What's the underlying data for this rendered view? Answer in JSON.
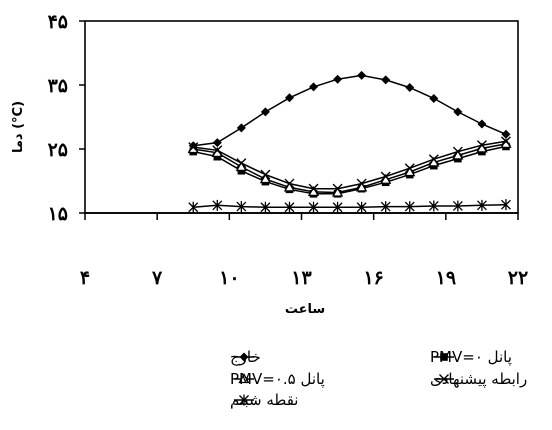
{
  "chart_data": {
    "type": "line",
    "xlabel": "ساعت",
    "ylabel": "دما (°C)",
    "xlim": [
      4,
      22
    ],
    "ylim": [
      15,
      45
    ],
    "xticks": [
      4,
      7,
      10,
      13,
      16,
      19,
      22
    ],
    "yticks": [
      15,
      25,
      35,
      45
    ],
    "xtick_labels": [
      "۴",
      "۷",
      "۱۰",
      "۱۳",
      "۱۶",
      "۱۹",
      "۲۲"
    ],
    "ytick_labels": [
      "۱۵",
      "۲۵",
      "۳۵",
      "۴۵"
    ],
    "grid": false,
    "legend_position": "bottom",
    "series": [
      {
        "name": "خارج",
        "marker": "diamond",
        "color": "#000000",
        "x": [
          8.5,
          9.5,
          10.5,
          11.5,
          12.5,
          13.5,
          14.5,
          15.5,
          16.5,
          17.5,
          18.5,
          19.5,
          20.5,
          21.5
        ],
        "y": [
          25.5,
          26.0,
          28.3,
          30.8,
          33.0,
          34.7,
          35.9,
          36.5,
          35.8,
          34.6,
          32.9,
          30.8,
          28.9,
          27.3
        ]
      },
      {
        "name": "پانل PMV=۰",
        "marker": "square",
        "color": "#000000",
        "x": [
          8.5,
          9.5,
          10.5,
          11.5,
          12.5,
          13.5,
          14.5,
          15.5,
          16.5,
          17.5,
          18.5,
          19.5,
          20.5,
          21.5
        ],
        "y": [
          24.6,
          23.8,
          21.6,
          19.9,
          18.7,
          18.0,
          18.0,
          18.8,
          19.8,
          21.0,
          22.4,
          23.5,
          24.6,
          25.4
        ]
      },
      {
        "name": "پانل PMV=۰.۵",
        "marker": "triangle",
        "color": "#000000",
        "x": [
          8.5,
          9.5,
          10.5,
          11.5,
          12.5,
          13.5,
          14.5,
          15.5,
          16.5,
          17.5,
          18.5,
          19.5,
          20.5,
          21.5
        ],
        "y": [
          25.0,
          24.4,
          22.2,
          20.3,
          19.0,
          18.3,
          18.2,
          19.0,
          20.2,
          21.4,
          22.9,
          24.0,
          25.1,
          25.8
        ]
      },
      {
        "name": "رابطه پیشنهادی",
        "marker": "x",
        "color": "#000000",
        "x": [
          8.5,
          9.5,
          10.5,
          11.5,
          12.5,
          13.5,
          14.5,
          15.5,
          16.5,
          17.5,
          18.5,
          19.5,
          20.5,
          21.5
        ],
        "y": [
          25.3,
          24.8,
          22.8,
          21.0,
          19.6,
          18.8,
          18.8,
          19.6,
          20.7,
          22.0,
          23.4,
          24.6,
          25.6,
          26.2
        ]
      },
      {
        "name": "نقطه شبنم",
        "marker": "star",
        "color": "#000000",
        "x": [
          8.5,
          9.5,
          10.5,
          11.5,
          12.5,
          13.5,
          14.5,
          15.5,
          16.5,
          17.5,
          18.5,
          19.5,
          20.5,
          21.5
        ],
        "y": [
          15.9,
          16.2,
          16.0,
          15.9,
          15.9,
          15.9,
          15.9,
          15.9,
          16.0,
          16.0,
          16.1,
          16.1,
          16.2,
          16.3
        ]
      }
    ]
  }
}
